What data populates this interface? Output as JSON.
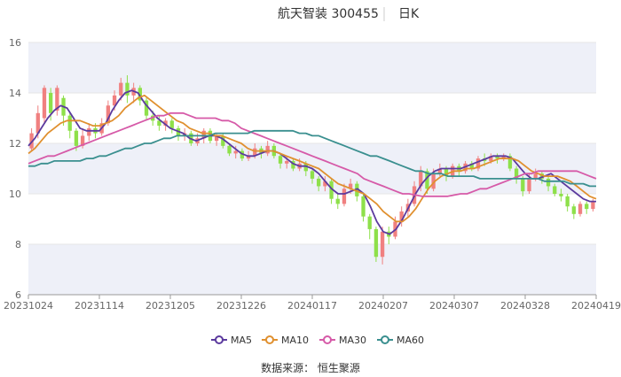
{
  "header": {
    "stock": "航天智装 300455",
    "period": "日K"
  },
  "source": "数据来源： 恒生聚源",
  "colors": {
    "up": "#f08080",
    "down": "#8ee04a",
    "ma5": "#5b3a9e",
    "ma10": "#e0902f",
    "ma30": "#d65aa8",
    "ma60": "#3a8f8f",
    "band": "#eef0f8",
    "grid": "#e6e6e6"
  },
  "chart_data": {
    "type": "candlestick",
    "ylim": [
      6,
      16
    ],
    "yticks": [
      6,
      8,
      10,
      12,
      14,
      16
    ],
    "xticks": [
      "20231024",
      "20231114",
      "20231205",
      "20231226",
      "20240117",
      "20240207",
      "20240307",
      "20240328",
      "20240419"
    ],
    "series": [
      {
        "name": "MA5",
        "color": "#5b3a9e",
        "values": [
          11.9,
          12.2,
          12.6,
          13.0,
          13.3,
          13.5,
          13.4,
          13.0,
          12.6,
          12.5,
          12.5,
          12.5,
          12.8,
          13.3,
          13.7,
          14.0,
          14.1,
          14.0,
          13.6,
          13.3,
          13.0,
          12.8,
          12.6,
          12.5,
          12.4,
          12.2,
          12.1,
          12.2,
          12.3,
          12.3,
          12.2,
          12.0,
          11.8,
          11.6,
          11.5,
          11.5,
          11.6,
          11.7,
          11.7,
          11.6,
          11.4,
          11.2,
          11.1,
          11.1,
          11.0,
          10.8,
          10.5,
          10.2,
          10.0,
          10.0,
          10.1,
          10.2,
          10.0,
          9.5,
          8.9,
          8.5,
          8.4,
          8.6,
          9.0,
          9.5,
          10.0,
          10.4,
          10.7,
          10.9,
          11.0,
          11.0,
          11.0,
          11.0,
          11.1,
          11.2,
          11.3,
          11.4,
          11.5,
          11.5,
          11.5,
          11.4,
          11.1,
          10.8,
          10.6,
          10.6,
          10.7,
          10.8,
          10.6,
          10.4,
          10.2,
          10.0,
          9.8,
          9.7,
          9.7
        ]
      },
      {
        "name": "MA10",
        "color": "#e0902f",
        "values": [
          11.6,
          11.8,
          12.1,
          12.4,
          12.6,
          12.8,
          12.9,
          12.9,
          12.9,
          12.8,
          12.7,
          12.7,
          12.8,
          12.9,
          13.1,
          13.4,
          13.6,
          13.8,
          13.9,
          13.7,
          13.5,
          13.3,
          13.1,
          12.9,
          12.8,
          12.6,
          12.5,
          12.4,
          12.4,
          12.3,
          12.3,
          12.2,
          12.1,
          12.0,
          11.8,
          11.7,
          11.7,
          11.7,
          11.7,
          11.6,
          11.5,
          11.4,
          11.3,
          11.2,
          11.1,
          11.0,
          10.8,
          10.6,
          10.4,
          10.3,
          10.2,
          10.1,
          10.0,
          9.8,
          9.6,
          9.3,
          9.1,
          8.9,
          8.9,
          9.1,
          9.4,
          9.8,
          10.2,
          10.5,
          10.7,
          10.8,
          10.9,
          10.9,
          11.0,
          11.0,
          11.1,
          11.2,
          11.3,
          11.4,
          11.4,
          11.4,
          11.3,
          11.1,
          10.9,
          10.8,
          10.7,
          10.7,
          10.7,
          10.6,
          10.5,
          10.3,
          10.1,
          9.9,
          9.8
        ]
      },
      {
        "name": "MA30",
        "color": "#d65aa8",
        "values": [
          11.2,
          11.3,
          11.4,
          11.5,
          11.5,
          11.6,
          11.7,
          11.8,
          11.9,
          12.0,
          12.1,
          12.2,
          12.3,
          12.4,
          12.5,
          12.6,
          12.7,
          12.8,
          12.9,
          13.0,
          13.1,
          13.1,
          13.2,
          13.2,
          13.2,
          13.1,
          13.0,
          13.0,
          13.0,
          13.0,
          12.9,
          12.9,
          12.8,
          12.6,
          12.5,
          12.4,
          12.3,
          12.2,
          12.1,
          12.0,
          11.9,
          11.8,
          11.7,
          11.6,
          11.5,
          11.4,
          11.3,
          11.2,
          11.1,
          11.0,
          10.9,
          10.8,
          10.6,
          10.5,
          10.4,
          10.3,
          10.2,
          10.1,
          10.0,
          10.0,
          9.95,
          9.9,
          9.9,
          9.9,
          9.9,
          9.9,
          9.95,
          10.0,
          10.0,
          10.1,
          10.2,
          10.2,
          10.3,
          10.4,
          10.5,
          10.6,
          10.7,
          10.8,
          10.8,
          10.9,
          10.9,
          10.9,
          10.9,
          10.9,
          10.9,
          10.9,
          10.8,
          10.7,
          10.6
        ]
      },
      {
        "name": "MA60",
        "color": "#3a8f8f",
        "values": [
          11.1,
          11.1,
          11.2,
          11.2,
          11.3,
          11.3,
          11.3,
          11.3,
          11.3,
          11.4,
          11.4,
          11.5,
          11.5,
          11.6,
          11.7,
          11.8,
          11.8,
          11.9,
          12.0,
          12.0,
          12.1,
          12.2,
          12.2,
          12.3,
          12.3,
          12.3,
          12.3,
          12.3,
          12.3,
          12.4,
          12.4,
          12.4,
          12.4,
          12.4,
          12.4,
          12.5,
          12.5,
          12.5,
          12.5,
          12.5,
          12.5,
          12.5,
          12.4,
          12.4,
          12.3,
          12.3,
          12.2,
          12.1,
          12.0,
          11.9,
          11.8,
          11.7,
          11.6,
          11.5,
          11.5,
          11.4,
          11.3,
          11.2,
          11.1,
          11.0,
          10.9,
          10.9,
          10.8,
          10.8,
          10.8,
          10.7,
          10.7,
          10.7,
          10.7,
          10.7,
          10.6,
          10.6,
          10.6,
          10.6,
          10.6,
          10.6,
          10.6,
          10.6,
          10.6,
          10.6,
          10.5,
          10.5,
          10.5,
          10.5,
          10.4,
          10.4,
          10.4,
          10.3,
          10.3
        ]
      }
    ],
    "candles": [
      [
        11.8,
        12.4,
        12.6,
        11.7
      ],
      [
        12.4,
        13.2,
        13.5,
        12.2
      ],
      [
        13.0,
        14.2,
        14.3,
        12.8
      ],
      [
        14.0,
        13.2,
        14.2,
        12.9
      ],
      [
        13.3,
        14.2,
        14.3,
        13.1
      ],
      [
        13.8,
        13.1,
        13.9,
        12.7
      ],
      [
        13.1,
        12.5,
        13.2,
        12.2
      ],
      [
        12.5,
        11.9,
        12.6,
        11.7
      ],
      [
        11.9,
        12.3,
        12.6,
        11.8
      ],
      [
        12.3,
        12.6,
        12.8,
        12.1
      ],
      [
        12.6,
        12.4,
        12.8,
        12.2
      ],
      [
        12.4,
        12.8,
        13.0,
        12.3
      ],
      [
        12.8,
        13.5,
        13.7,
        12.7
      ],
      [
        13.5,
        13.9,
        14.1,
        13.3
      ],
      [
        13.9,
        14.4,
        14.6,
        13.7
      ],
      [
        14.4,
        13.9,
        14.7,
        13.6
      ],
      [
        13.9,
        14.2,
        14.4,
        13.6
      ],
      [
        14.2,
        13.7,
        14.3,
        13.5
      ],
      [
        13.7,
        13.1,
        13.8,
        12.9
      ],
      [
        13.1,
        12.9,
        13.3,
        12.7
      ],
      [
        12.9,
        12.7,
        13.1,
        12.5
      ],
      [
        12.7,
        12.9,
        13.0,
        12.5
      ],
      [
        12.9,
        12.6,
        13.0,
        12.4
      ],
      [
        12.6,
        12.3,
        12.7,
        12.1
      ],
      [
        12.3,
        12.4,
        12.6,
        12.1
      ],
      [
        12.4,
        12.0,
        12.5,
        11.9
      ],
      [
        12.0,
        12.2,
        12.4,
        11.9
      ],
      [
        12.2,
        12.5,
        12.6,
        12.0
      ],
      [
        12.5,
        12.1,
        12.6,
        12.0
      ],
      [
        12.1,
        12.3,
        12.4,
        11.9
      ],
      [
        12.3,
        11.9,
        12.4,
        11.8
      ],
      [
        11.9,
        11.6,
        12.0,
        11.5
      ],
      [
        11.6,
        11.7,
        11.9,
        11.4
      ],
      [
        11.7,
        11.4,
        11.8,
        11.3
      ],
      [
        11.4,
        11.5,
        11.7,
        11.3
      ],
      [
        11.5,
        11.8,
        12.0,
        11.4
      ],
      [
        11.8,
        11.6,
        11.9,
        11.4
      ],
      [
        11.6,
        11.9,
        12.1,
        11.5
      ],
      [
        11.9,
        11.5,
        12.0,
        11.4
      ],
      [
        11.5,
        11.2,
        11.6,
        11.0
      ],
      [
        11.2,
        11.3,
        11.5,
        11.0
      ],
      [
        11.3,
        11.0,
        11.4,
        10.9
      ],
      [
        11.0,
        11.2,
        11.4,
        10.9
      ],
      [
        11.2,
        10.9,
        11.3,
        10.7
      ],
      [
        10.9,
        10.6,
        11.0,
        10.4
      ],
      [
        10.6,
        10.3,
        10.7,
        10.1
      ],
      [
        10.3,
        10.5,
        10.7,
        10.1
      ],
      [
        10.5,
        9.8,
        10.6,
        9.6
      ],
      [
        9.8,
        9.6,
        10.0,
        9.4
      ],
      [
        9.6,
        10.2,
        10.4,
        9.5
      ],
      [
        10.2,
        10.4,
        10.6,
        10.0
      ],
      [
        10.4,
        9.9,
        10.5,
        9.7
      ],
      [
        9.9,
        9.1,
        10.0,
        8.9
      ],
      [
        9.1,
        8.6,
        9.2,
        8.2
      ],
      [
        8.6,
        7.5,
        8.7,
        7.3
      ],
      [
        7.5,
        8.5,
        8.7,
        7.2
      ],
      [
        8.5,
        8.3,
        8.7,
        8.0
      ],
      [
        8.3,
        8.9,
        9.1,
        8.2
      ],
      [
        8.9,
        9.3,
        9.5,
        8.7
      ],
      [
        9.3,
        9.6,
        9.8,
        9.1
      ],
      [
        9.6,
        10.3,
        10.5,
        9.5
      ],
      [
        10.3,
        10.9,
        11.1,
        10.1
      ],
      [
        10.9,
        10.2,
        11.0,
        10.0
      ],
      [
        10.2,
        10.8,
        11.0,
        10.1
      ],
      [
        10.8,
        11.0,
        11.2,
        10.7
      ],
      [
        11.0,
        10.7,
        11.1,
        10.5
      ],
      [
        10.7,
        11.1,
        11.2,
        10.6
      ],
      [
        11.1,
        10.9,
        11.2,
        10.7
      ],
      [
        10.9,
        11.2,
        11.3,
        10.8
      ],
      [
        11.2,
        11.0,
        11.3,
        10.9
      ],
      [
        11.0,
        11.4,
        11.5,
        10.9
      ],
      [
        11.4,
        11.3,
        11.6,
        11.1
      ],
      [
        11.3,
        11.5,
        11.6,
        11.2
      ],
      [
        11.5,
        11.4,
        11.6,
        11.2
      ],
      [
        11.4,
        11.5,
        11.6,
        11.3
      ],
      [
        11.5,
        11.0,
        11.6,
        10.9
      ],
      [
        11.0,
        10.6,
        11.1,
        10.4
      ],
      [
        10.6,
        10.1,
        10.7,
        9.9
      ],
      [
        10.1,
        10.6,
        10.8,
        10.0
      ],
      [
        10.6,
        10.8,
        11.0,
        10.5
      ],
      [
        10.8,
        10.6,
        10.9,
        10.4
      ],
      [
        10.6,
        10.3,
        10.7,
        10.1
      ],
      [
        10.3,
        10.0,
        10.4,
        9.9
      ],
      [
        10.0,
        9.9,
        10.2,
        9.7
      ],
      [
        9.9,
        9.5,
        10.0,
        9.3
      ],
      [
        9.5,
        9.2,
        9.6,
        9.0
      ],
      [
        9.2,
        9.6,
        9.7,
        9.1
      ],
      [
        9.6,
        9.4,
        9.7,
        9.2
      ],
      [
        9.4,
        9.7,
        9.8,
        9.3
      ]
    ]
  }
}
